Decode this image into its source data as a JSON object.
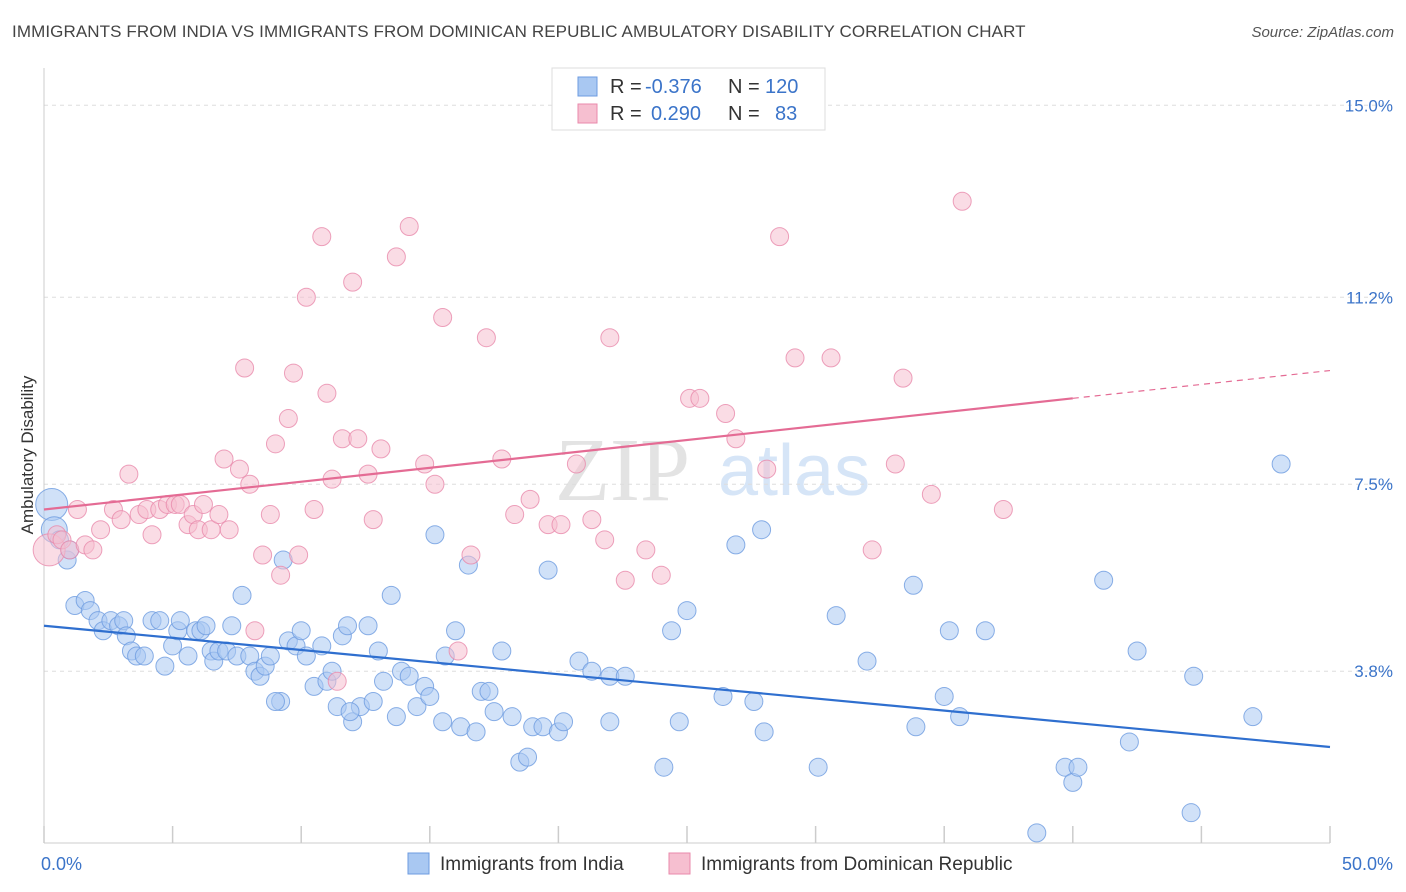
{
  "title": "IMMIGRANTS FROM INDIA VS IMMIGRANTS FROM DOMINICAN REPUBLIC AMBULATORY DISABILITY CORRELATION CHART",
  "source": "Source: ZipAtlas.com",
  "watermark": {
    "zip": "ZIP",
    "atlas": "atlas"
  },
  "legend": {
    "r_label": "R =",
    "n_label": "N =",
    "rows": [
      {
        "r": "-0.376",
        "n": "120",
        "color": "#a9c8f2",
        "stroke": "#6d9be0"
      },
      {
        "r": "0.290",
        "n": "83",
        "color": "#f6bfd0",
        "stroke": "#e98aab"
      }
    ]
  },
  "chart_data": {
    "type": "scatter",
    "title": "IMMIGRANTS FROM INDIA VS IMMIGRANTS FROM DOMINICAN REPUBLIC AMBULATORY DISABILITY CORRELATION CHART",
    "xlabel": "",
    "ylabel": "Ambulatory Disability",
    "xlim": [
      0,
      50
    ],
    "ylim": [
      0.4,
      15.5
    ],
    "x_tick_labels": [
      {
        "value": 0,
        "label": "0.0%"
      },
      {
        "value": 50,
        "label": "50.0%"
      }
    ],
    "y_tick_labels": [
      {
        "value": 3.8,
        "label": "3.8%"
      },
      {
        "value": 7.5,
        "label": "7.5%"
      },
      {
        "value": 11.2,
        "label": "11.2%"
      },
      {
        "value": 15.0,
        "label": "15.0%"
      }
    ],
    "grid": "horizontal dashed",
    "legend_position": "top-center",
    "series": [
      {
        "name": "Immigrants from India",
        "color": "#a9c8f2",
        "stroke": "#6d9be0",
        "trend": {
          "x": [
            0,
            50
          ],
          "y": [
            4.7,
            2.3
          ],
          "color": "#2f6fcf"
        },
        "points": [
          [
            0.3,
            7.1
          ],
          [
            0.4,
            6.6
          ],
          [
            0.6,
            6.4
          ],
          [
            0.9,
            6.0
          ],
          [
            1.0,
            6.2
          ],
          [
            1.2,
            5.1
          ],
          [
            1.6,
            5.2
          ],
          [
            1.8,
            5.0
          ],
          [
            2.1,
            4.8
          ],
          [
            2.3,
            4.6
          ],
          [
            2.6,
            4.8
          ],
          [
            2.9,
            4.7
          ],
          [
            3.1,
            4.8
          ],
          [
            3.2,
            4.5
          ],
          [
            3.4,
            4.2
          ],
          [
            3.6,
            4.1
          ],
          [
            3.9,
            4.1
          ],
          [
            4.2,
            4.8
          ],
          [
            4.5,
            4.8
          ],
          [
            4.7,
            3.9
          ],
          [
            5.0,
            4.3
          ],
          [
            5.2,
            4.6
          ],
          [
            5.3,
            4.8
          ],
          [
            5.6,
            4.1
          ],
          [
            5.9,
            4.6
          ],
          [
            6.1,
            4.6
          ],
          [
            6.3,
            4.7
          ],
          [
            6.5,
            4.2
          ],
          [
            6.6,
            4.0
          ],
          [
            6.8,
            4.2
          ],
          [
            7.1,
            4.2
          ],
          [
            7.3,
            4.7
          ],
          [
            7.5,
            4.1
          ],
          [
            7.7,
            5.3
          ],
          [
            8.0,
            4.1
          ],
          [
            8.2,
            3.8
          ],
          [
            8.4,
            3.7
          ],
          [
            8.6,
            3.9
          ],
          [
            8.8,
            4.1
          ],
          [
            9.2,
            3.2
          ],
          [
            9.3,
            6.0
          ],
          [
            9.5,
            4.4
          ],
          [
            9.8,
            4.3
          ],
          [
            10.0,
            4.6
          ],
          [
            10.2,
            4.1
          ],
          [
            10.5,
            3.5
          ],
          [
            10.8,
            4.3
          ],
          [
            11.0,
            3.6
          ],
          [
            11.2,
            3.8
          ],
          [
            11.4,
            3.1
          ],
          [
            11.6,
            4.5
          ],
          [
            11.8,
            4.7
          ],
          [
            12.0,
            2.8
          ],
          [
            12.3,
            3.1
          ],
          [
            12.6,
            4.7
          ],
          [
            12.8,
            3.2
          ],
          [
            13.0,
            4.2
          ],
          [
            13.2,
            3.6
          ],
          [
            13.5,
            5.3
          ],
          [
            13.7,
            2.9
          ],
          [
            13.9,
            3.8
          ],
          [
            14.2,
            3.7
          ],
          [
            14.5,
            3.1
          ],
          [
            14.8,
            3.5
          ],
          [
            15.0,
            3.3
          ],
          [
            15.2,
            6.5
          ],
          [
            15.5,
            2.8
          ],
          [
            16.0,
            4.6
          ],
          [
            16.2,
            2.7
          ],
          [
            16.5,
            5.9
          ],
          [
            16.8,
            2.6
          ],
          [
            17.0,
            3.4
          ],
          [
            17.3,
            3.4
          ],
          [
            17.5,
            3.0
          ],
          [
            17.8,
            4.2
          ],
          [
            18.2,
            2.9
          ],
          [
            18.5,
            2.0
          ],
          [
            18.8,
            2.1
          ],
          [
            19.0,
            2.7
          ],
          [
            19.4,
            2.7
          ],
          [
            19.6,
            5.8
          ],
          [
            20.0,
            2.6
          ],
          [
            20.2,
            2.8
          ],
          [
            20.8,
            4.0
          ],
          [
            21.3,
            3.8
          ],
          [
            22.0,
            2.8
          ],
          [
            22.0,
            3.7
          ],
          [
            22.6,
            3.7
          ],
          [
            24.1,
            1.9
          ],
          [
            24.4,
            4.6
          ],
          [
            24.7,
            2.8
          ],
          [
            25.0,
            5.0
          ],
          [
            26.4,
            3.3
          ],
          [
            26.9,
            6.3
          ],
          [
            27.6,
            3.2
          ],
          [
            27.9,
            6.6
          ],
          [
            28.0,
            2.6
          ],
          [
            30.1,
            1.9
          ],
          [
            30.8,
            4.9
          ],
          [
            32.0,
            4.0
          ],
          [
            33.8,
            5.5
          ],
          [
            33.9,
            2.7
          ],
          [
            35.0,
            3.3
          ],
          [
            35.2,
            4.6
          ],
          [
            35.6,
            2.9
          ],
          [
            36.6,
            4.6
          ],
          [
            38.6,
            0.6
          ],
          [
            39.7,
            1.9
          ],
          [
            40.0,
            1.6
          ],
          [
            40.2,
            1.9
          ],
          [
            41.2,
            5.6
          ],
          [
            42.2,
            2.4
          ],
          [
            42.5,
            4.2
          ],
          [
            44.6,
            1.0
          ],
          [
            44.7,
            3.7
          ],
          [
            47.0,
            2.9
          ],
          [
            48.1,
            7.9
          ],
          [
            15.6,
            4.1
          ],
          [
            9.0,
            3.2
          ],
          [
            11.9,
            3.0
          ]
        ]
      },
      {
        "name": "Immigrants from Dominican Republic",
        "color": "#f6bfd0",
        "stroke": "#e98aab",
        "trend": {
          "x": [
            0,
            40
          ],
          "y": [
            7.0,
            9.2
          ],
          "x_dashed": [
            40,
            50
          ],
          "y_dashed": [
            9.2,
            9.75
          ],
          "color": "#e46b94"
        },
        "points": [
          [
            0.2,
            6.2
          ],
          [
            0.5,
            6.5
          ],
          [
            0.7,
            6.4
          ],
          [
            1.0,
            6.2
          ],
          [
            1.3,
            7.0
          ],
          [
            1.6,
            6.3
          ],
          [
            1.9,
            6.2
          ],
          [
            2.2,
            6.6
          ],
          [
            2.7,
            7.0
          ],
          [
            3.0,
            6.8
          ],
          [
            3.3,
            7.7
          ],
          [
            3.7,
            6.9
          ],
          [
            4.0,
            7.0
          ],
          [
            4.2,
            6.5
          ],
          [
            4.5,
            7.0
          ],
          [
            4.8,
            7.1
          ],
          [
            5.1,
            7.1
          ],
          [
            5.3,
            7.1
          ],
          [
            5.6,
            6.7
          ],
          [
            5.8,
            6.9
          ],
          [
            6.0,
            6.6
          ],
          [
            6.2,
            7.1
          ],
          [
            6.5,
            6.6
          ],
          [
            6.8,
            6.9
          ],
          [
            7.0,
            8.0
          ],
          [
            7.2,
            6.6
          ],
          [
            7.6,
            7.8
          ],
          [
            7.8,
            9.8
          ],
          [
            8.0,
            7.5
          ],
          [
            8.2,
            4.6
          ],
          [
            8.5,
            6.1
          ],
          [
            8.8,
            6.9
          ],
          [
            9.0,
            8.3
          ],
          [
            9.2,
            5.7
          ],
          [
            9.5,
            8.8
          ],
          [
            9.7,
            9.7
          ],
          [
            9.9,
            6.1
          ],
          [
            10.2,
            11.2
          ],
          [
            10.5,
            7.0
          ],
          [
            10.8,
            12.4
          ],
          [
            11.0,
            9.3
          ],
          [
            11.2,
            7.6
          ],
          [
            11.4,
            3.6
          ],
          [
            11.6,
            8.4
          ],
          [
            12.0,
            11.5
          ],
          [
            12.2,
            8.4
          ],
          [
            12.6,
            7.7
          ],
          [
            12.8,
            6.8
          ],
          [
            13.1,
            8.2
          ],
          [
            13.7,
            12.0
          ],
          [
            14.2,
            12.6
          ],
          [
            14.8,
            7.9
          ],
          [
            15.2,
            7.5
          ],
          [
            15.5,
            10.8
          ],
          [
            16.1,
            4.2
          ],
          [
            16.6,
            6.1
          ],
          [
            17.2,
            10.4
          ],
          [
            17.8,
            8.0
          ],
          [
            18.3,
            6.9
          ],
          [
            18.9,
            7.2
          ],
          [
            19.6,
            6.7
          ],
          [
            20.1,
            6.7
          ],
          [
            20.7,
            7.9
          ],
          [
            21.3,
            6.8
          ],
          [
            21.8,
            6.4
          ],
          [
            22.0,
            10.4
          ],
          [
            22.6,
            5.6
          ],
          [
            23.4,
            6.2
          ],
          [
            24.0,
            5.7
          ],
          [
            25.1,
            9.2
          ],
          [
            25.5,
            9.2
          ],
          [
            26.9,
            8.4
          ],
          [
            28.1,
            7.8
          ],
          [
            28.6,
            12.4
          ],
          [
            29.2,
            10.0
          ],
          [
            30.6,
            10.0
          ],
          [
            32.2,
            6.2
          ],
          [
            33.1,
            7.9
          ],
          [
            33.4,
            9.6
          ],
          [
            34.5,
            7.3
          ],
          [
            35.7,
            13.1
          ],
          [
            37.3,
            7.0
          ],
          [
            26.5,
            8.9
          ]
        ]
      }
    ]
  },
  "bottom_legend": [
    {
      "label": "Immigrants from India",
      "color": "#a9c8f2",
      "stroke": "#6d9be0"
    },
    {
      "label": "Immigrants from Dominican Republic",
      "color": "#f6bfd0",
      "stroke": "#e98aab"
    }
  ]
}
